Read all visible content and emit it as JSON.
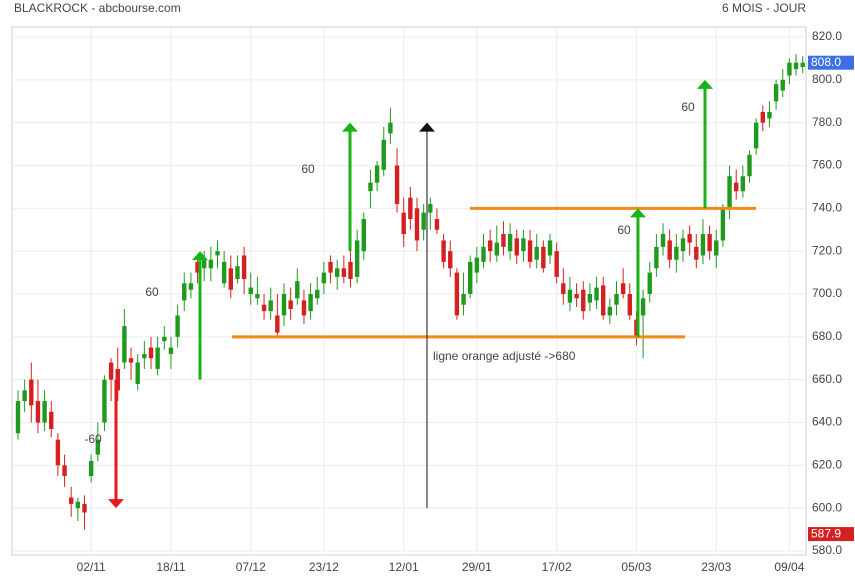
{
  "chart_data": {
    "type": "candlestick",
    "title": "BLACKROCK - abcbourse.com",
    "subtitle": "6 MOIS - JOUR",
    "up_color": "#1f9a1f",
    "down_color": "#d42020",
    "grid": true,
    "ylim": [
      580,
      820
    ],
    "yticks": [
      {
        "value": 580,
        "label": "580.0"
      },
      {
        "value": 600,
        "label": "600.0"
      },
      {
        "value": 620,
        "label": "620.0"
      },
      {
        "value": 640,
        "label": "640.0"
      },
      {
        "value": 660,
        "label": "660.0"
      },
      {
        "value": 680,
        "label": "680.0"
      },
      {
        "value": 700,
        "label": "700.0"
      },
      {
        "value": 720,
        "label": "720.0"
      },
      {
        "value": 740,
        "label": "740.0"
      },
      {
        "value": 760,
        "label": "760.0"
      },
      {
        "value": 780,
        "label": "780.0"
      },
      {
        "value": 800,
        "label": "800.0"
      },
      {
        "value": 820,
        "label": "820.0"
      }
    ],
    "categories": [
      null,
      null,
      null,
      null,
      null,
      null,
      null,
      null,
      null,
      null,
      null,
      "02/11",
      null,
      null,
      null,
      null,
      null,
      null,
      null,
      null,
      null,
      null,
      null,
      "18/11",
      null,
      null,
      null,
      null,
      null,
      null,
      null,
      null,
      null,
      null,
      null,
      "07/12",
      null,
      null,
      null,
      null,
      null,
      null,
      null,
      null,
      null,
      null,
      "23/12",
      null,
      null,
      null,
      null,
      null,
      null,
      null,
      null,
      null,
      null,
      null,
      "12/01",
      null,
      null,
      null,
      null,
      null,
      null,
      null,
      null,
      null,
      null,
      "29/01",
      null,
      null,
      null,
      null,
      null,
      null,
      null,
      null,
      null,
      null,
      null,
      "17/02",
      null,
      null,
      null,
      null,
      null,
      null,
      null,
      null,
      null,
      null,
      null,
      "05/03",
      null,
      null,
      null,
      null,
      null,
      null,
      null,
      null,
      null,
      null,
      null,
      "23/03",
      null,
      null,
      null,
      null,
      null,
      null,
      null,
      null,
      null,
      null,
      "09/04",
      null,
      null
    ],
    "open": [
      635,
      650,
      660,
      650,
      640,
      645,
      632,
      620,
      605,
      600,
      602,
      615,
      625,
      640,
      668,
      665,
      668,
      670,
      658,
      670,
      675,
      665,
      678,
      672,
      680,
      697,
      702,
      715,
      712,
      712,
      718,
      705,
      712,
      707,
      718,
      700,
      698,
      695,
      692,
      690,
      690,
      697,
      698,
      697,
      692,
      698,
      705,
      715,
      708,
      712,
      715,
      708,
      720,
      748,
      752,
      758,
      775,
      760,
      738,
      745,
      740,
      730,
      738,
      735,
      725,
      720,
      710,
      695,
      700,
      710,
      715,
      725,
      718,
      728,
      720,
      726,
      720,
      725,
      716,
      722,
      718,
      720,
      705,
      696,
      700,
      702,
      696,
      697,
      704,
      690,
      695,
      705,
      700,
      688,
      690,
      700,
      712,
      722,
      725,
      716,
      720,
      728,
      722,
      718,
      728,
      718,
      725,
      740,
      752,
      748,
      755,
      768,
      785,
      782,
      790,
      795,
      802,
      805,
      806
    ],
    "high": [
      655,
      660,
      668,
      660,
      655,
      650,
      635,
      625,
      610,
      605,
      606,
      625,
      640,
      662,
      670,
      675,
      693,
      675,
      672,
      678,
      680,
      680,
      685,
      680,
      695,
      710,
      710,
      718,
      720,
      722,
      725,
      720,
      718,
      718,
      722,
      710,
      708,
      700,
      703,
      700,
      705,
      703,
      712,
      702,
      705,
      708,
      715,
      718,
      716,
      718,
      728,
      730,
      738,
      758,
      762,
      778,
      787,
      768,
      745,
      750,
      745,
      742,
      745,
      740,
      728,
      725,
      712,
      710,
      718,
      722,
      728,
      730,
      732,
      734,
      733,
      730,
      730,
      730,
      728,
      725,
      728,
      724,
      712,
      708,
      705,
      706,
      705,
      708,
      708,
      698,
      706,
      712,
      705,
      692,
      702,
      715,
      728,
      733,
      730,
      728,
      730,
      732,
      728,
      735,
      732,
      730,
      742,
      760,
      758,
      760,
      767,
      782,
      788,
      790,
      800,
      805,
      810,
      812,
      811
    ],
    "low": [
      632,
      645,
      640,
      635,
      636,
      633,
      615,
      610,
      596,
      594,
      590,
      612,
      622,
      636,
      650,
      650,
      665,
      660,
      655,
      665,
      665,
      662,
      674,
      665,
      675,
      692,
      698,
      705,
      706,
      706,
      712,
      703,
      698,
      705,
      700,
      695,
      695,
      688,
      688,
      680,
      685,
      688,
      695,
      686,
      688,
      695,
      700,
      705,
      702,
      705,
      703,
      705,
      716,
      740,
      748,
      755,
      770,
      738,
      722,
      730,
      720,
      725,
      730,
      728,
      712,
      708,
      688,
      690,
      698,
      705,
      712,
      715,
      715,
      718,
      716,
      714,
      715,
      712,
      712,
      710,
      714,
      705,
      695,
      692,
      694,
      688,
      692,
      693,
      688,
      686,
      690,
      698,
      688,
      676,
      670,
      696,
      708,
      718,
      712,
      710,
      715,
      718,
      712,
      714,
      716,
      712,
      722,
      735,
      744,
      745,
      752,
      765,
      776,
      778,
      786,
      792,
      798,
      802,
      803
    ],
    "close": [
      650,
      655,
      648,
      640,
      650,
      637,
      620,
      615,
      602,
      603,
      598,
      622,
      632,
      660,
      660,
      655,
      685,
      668,
      668,
      672,
      670,
      675,
      680,
      675,
      690,
      705,
      705,
      710,
      716,
      716,
      720,
      715,
      702,
      713,
      707,
      703,
      700,
      692,
      697,
      682,
      700,
      693,
      706,
      690,
      700,
      702,
      710,
      710,
      712,
      708,
      707,
      725,
      735,
      752,
      760,
      772,
      780,
      742,
      728,
      735,
      725,
      738,
      742,
      730,
      715,
      712,
      690,
      700,
      715,
      717,
      722,
      720,
      724,
      722,
      728,
      718,
      726,
      715,
      722,
      712,
      725,
      708,
      700,
      702,
      698,
      692,
      700,
      703,
      690,
      694,
      700,
      700,
      690,
      680,
      698,
      710,
      722,
      728,
      716,
      722,
      726,
      724,
      716,
      728,
      720,
      725,
      740,
      755,
      748,
      755,
      765,
      780,
      780,
      785,
      798,
      800,
      808,
      808,
      808
    ],
    "price_tags": [
      {
        "value": 808,
        "label": "808.0",
        "color": "#3b6fe3"
      },
      {
        "value": 587.9,
        "label": "587.9",
        "color": "#d42020"
      }
    ],
    "levels": [
      {
        "value": 680,
        "color": "#f28a1a"
      },
      {
        "value": 740,
        "color": "#f28a1a"
      }
    ],
    "arrows": [
      {
        "label": "-60",
        "from": 660,
        "to": 600,
        "color": "#e8191b"
      },
      {
        "label": "60",
        "from": 660,
        "to": 720,
        "color": "#18b318"
      },
      {
        "label": "60",
        "from": 720,
        "to": 780,
        "color": "#18b318"
      },
      {
        "from": 600,
        "to": 780,
        "color": "#111111"
      },
      {
        "label": "60",
        "from": 680,
        "to": 740,
        "color": "#18b318"
      },
      {
        "label": "60",
        "from": 740,
        "to": 800,
        "color": "#18b318"
      }
    ],
    "annotation": "ligne orange adjusté ->680"
  }
}
